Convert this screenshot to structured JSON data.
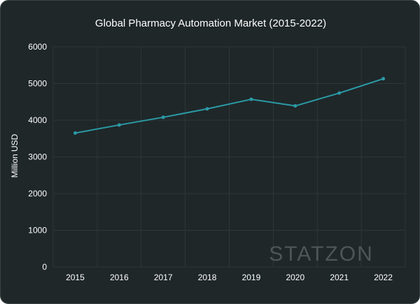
{
  "chart_data": {
    "type": "line",
    "title": "Global Pharmacy Automation Market (2015-2022)",
    "xlabel": "",
    "ylabel": "Million USD",
    "categories": [
      "2015",
      "2016",
      "2017",
      "2018",
      "2019",
      "2020",
      "2021",
      "2022"
    ],
    "series": [
      {
        "values": [
          3650,
          3870,
          4080,
          4310,
          4570,
          4390,
          4740,
          5130
        ]
      }
    ],
    "ylim": [
      0,
      6000
    ],
    "yticks": [
      0,
      1000,
      2000,
      3000,
      4000,
      5000,
      6000
    ],
    "grid": true,
    "legend": "none"
  },
  "colors": {
    "background": "#1f2729",
    "line": "#2b9aa6",
    "grid": "#2d3638",
    "text": "#ffffff"
  },
  "watermark": "STATZON"
}
